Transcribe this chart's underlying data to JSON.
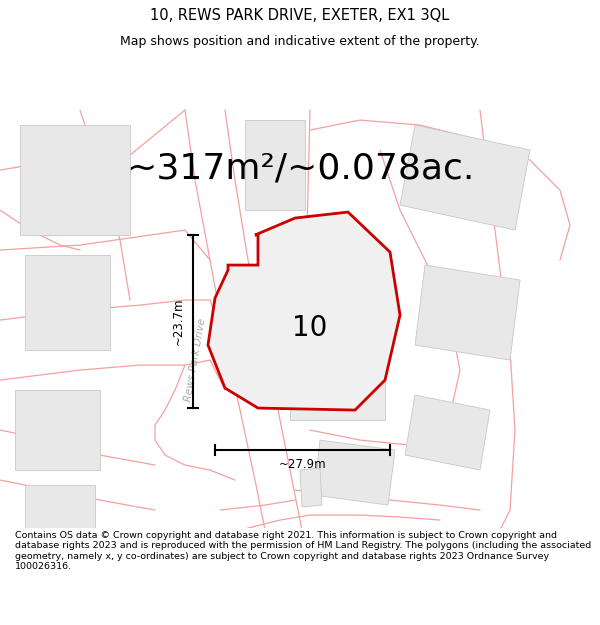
{
  "title": "10, REWS PARK DRIVE, EXETER, EX1 3QL",
  "subtitle": "Map shows position and indicative extent of the property.",
  "area_text": "~317m²/~0.078ac.",
  "label_10": "10",
  "dim_vertical": "~23.7m",
  "dim_horizontal": "~27.9m",
  "road_label": "Rews Park Drive",
  "footer": "Contains OS data © Crown copyright and database right 2021. This information is subject to Crown copyright and database rights 2023 and is reproduced with the permission of HM Land Registry. The polygons (including the associated geometry, namely x, y co-ordinates) are subject to Crown copyright and database rights 2023 Ordnance Survey 100026316.",
  "bg_color": "#ffffff",
  "building_fill": "#e8e8e8",
  "building_edge": "#c8c8c8",
  "road_color": "#f5a0a0",
  "highlight_fill": "#f0f0f0",
  "highlight_edge": "#cc0000",
  "title_fontsize": 10.5,
  "subtitle_fontsize": 9,
  "area_fontsize": 26,
  "footer_fontsize": 6.8
}
